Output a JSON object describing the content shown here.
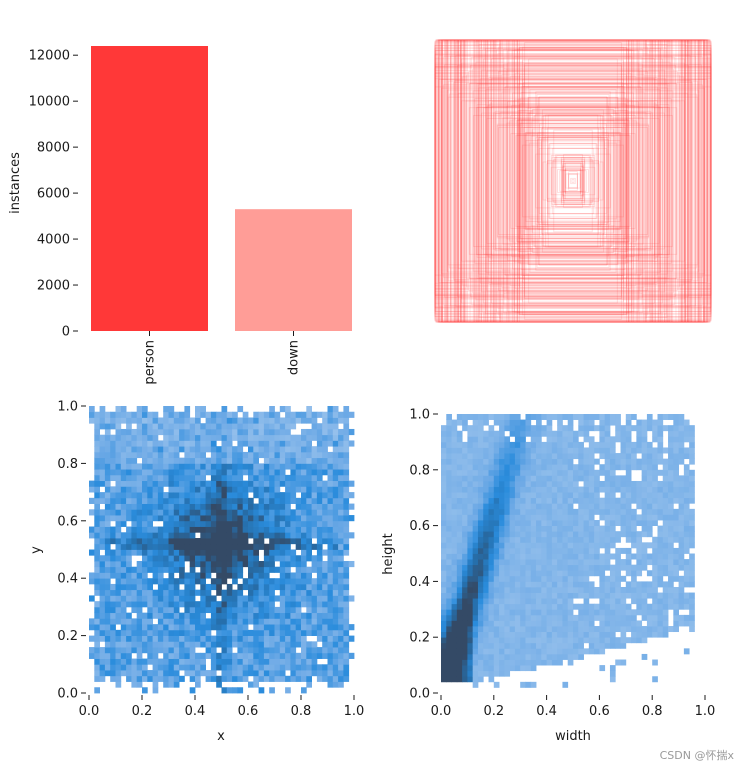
{
  "watermark": "CSDN @怀揣x",
  "chart_data": [
    {
      "type": "bar",
      "categories": [
        "person",
        "down"
      ],
      "values": [
        12400,
        5300
      ],
      "colors": [
        "#ff3838",
        "#ff9d97"
      ],
      "xlabel": "",
      "ylabel": "instances",
      "ylim": [
        0,
        12400
      ],
      "yticks": [
        0,
        2000,
        4000,
        6000,
        8000,
        10000,
        12000
      ]
    },
    {
      "type": "box-overlay",
      "color": "#ff3838",
      "description_visible": false,
      "xlim": [
        0,
        1
      ],
      "ylim": [
        0,
        1
      ]
    },
    {
      "type": "heatmap",
      "xlabel": "x",
      "ylabel": "y",
      "xlim": [
        0,
        1
      ],
      "ylim": [
        0,
        1
      ],
      "xticks": [
        "0.0",
        "0.2",
        "0.4",
        "0.6",
        "0.8",
        "1.0"
      ],
      "yticks": [
        "0.0",
        "0.2",
        "0.4",
        "0.6",
        "0.8",
        "1.0"
      ],
      "color": "#1f77b4"
    },
    {
      "type": "heatmap",
      "xlabel": "width",
      "ylabel": "height",
      "xlim": [
        0,
        1
      ],
      "ylim": [
        0,
        1
      ],
      "xticks": [
        "0.0",
        "0.2",
        "0.4",
        "0.6",
        "0.8",
        "1.0"
      ],
      "yticks": [
        "0.0",
        "0.2",
        "0.4",
        "0.6",
        "0.8",
        "1.0"
      ],
      "color": "#1f77b4"
    }
  ]
}
